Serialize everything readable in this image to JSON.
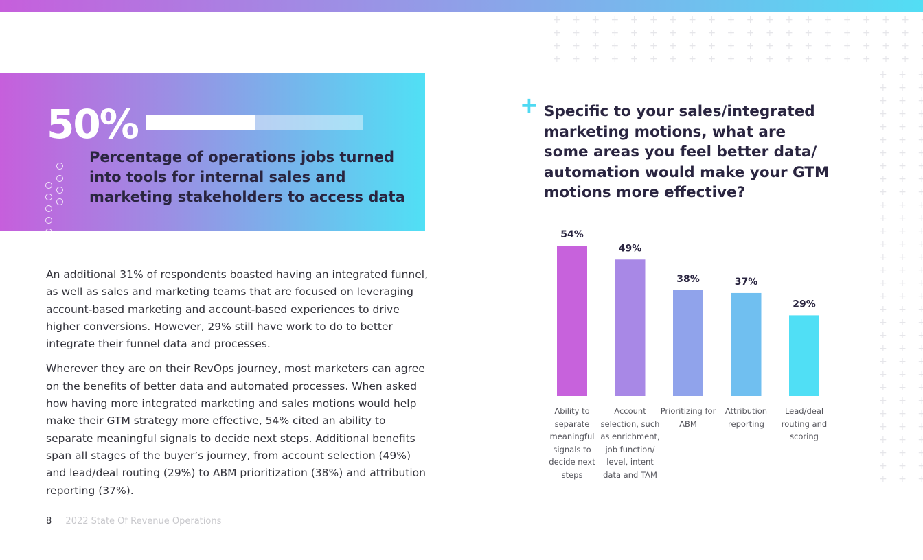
{
  "hero": {
    "stat": "50%",
    "progress_percent": 50,
    "description": "Percentage of operations jobs turned into tools for internal sales and marketing stakeholders to access data"
  },
  "body": {
    "paragraphs": [
      "An additional 31% of respondents boasted having an integrated funnel, as well as sales and marketing teams that are focused on leveraging account-based marketing and account-based experiences to drive higher conversions. However, 29% still have work to do to better integrate their funnel data and processes.",
      "Wherever they are on their RevOps journey, most marketers can agree on the benefits of better data and automated processes. When asked how having more integrated marketing and sales motions would help make their GTM strategy more effective, 54% cited an ability to separate meaningful signals to decide next steps. Additional benefits span all stages of the buyer’s journey, from account selection (49%) and lead/deal routing (29%) to ABM prioritization (38%) and attribution reporting (37%)."
    ]
  },
  "footer": {
    "page_number": "8",
    "report_title": "2022 State Of Revenue Operations"
  },
  "chart_data": {
    "type": "bar",
    "title": "Specific to your sales/integrated marketing motions, what are some areas you feel better data/ automation would make your GTM motions more effective?",
    "categories": [
      "Ability to separate meaningful signals to decide next steps",
      "Account selection, such as enrichment, job function/ level, intent data and TAM",
      "Prioritizing for ABM",
      "Attribution reporting",
      "Lead/deal routing and scoring"
    ],
    "values": [
      54,
      49,
      38,
      37,
      29
    ],
    "value_labels": [
      "54%",
      "49%",
      "38%",
      "37%",
      "29%"
    ],
    "unit": "%",
    "ylim": [
      0,
      54
    ],
    "grid": false,
    "colors": [
      "#c762dc",
      "#a888e6",
      "#90a3eb",
      "#70bff0",
      "#50dff5"
    ]
  }
}
